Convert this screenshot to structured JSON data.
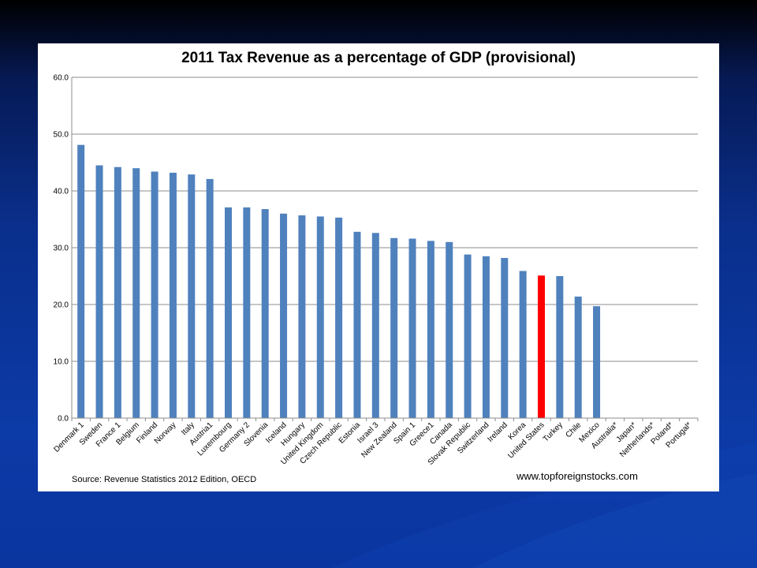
{
  "slide": {
    "background_colors": [
      "#000000",
      "#0a2f8c",
      "#0c3aa6"
    ]
  },
  "chart_data": {
    "type": "bar",
    "title": "2011 Tax Revenue as a percentage of GDP (provisional)",
    "xlabel": "",
    "ylabel": "",
    "ylim": [
      0,
      60
    ],
    "yticks": [
      "0.0",
      "10.0",
      "20.0",
      "30.0",
      "40.0",
      "50.0",
      "60.0"
    ],
    "grid": true,
    "bar_color": "#4f81bd",
    "highlight_color": "#ff0000",
    "highlight_category": "United States",
    "categories": [
      "Denmark 1",
      "Sweden",
      "France 1",
      "Belgium",
      "Finland",
      "Norway",
      "Italy",
      "Austria1",
      "Luxembourg",
      "Germany 2",
      "Slovenia",
      "Iceland",
      "Hungary",
      "United Kingdom",
      "Czech Republic",
      "Estonia",
      "Israel 3",
      "New Zealand",
      "Spain 1",
      "Greece1",
      "Canada",
      "Slovak Republic",
      "Switzerland",
      "Ireland",
      "Korea",
      "United States",
      "Turkey",
      "Chile",
      "Mexico",
      "Australia*",
      "Japan*",
      "Netherlands*",
      "Poland*",
      "Portugal*"
    ],
    "values": [
      48.1,
      44.5,
      44.2,
      44.0,
      43.4,
      43.2,
      42.9,
      42.1,
      37.1,
      37.1,
      36.8,
      36.0,
      35.7,
      35.5,
      35.3,
      32.8,
      32.6,
      31.7,
      31.6,
      31.2,
      31.0,
      28.8,
      28.5,
      28.2,
      25.9,
      25.1,
      25.0,
      21.4,
      19.7,
      null,
      null,
      null,
      null,
      null
    ],
    "source": "Source: Revenue Statistics 2012 Edition, OECD",
    "website": "www.topforeignstocks.com"
  }
}
